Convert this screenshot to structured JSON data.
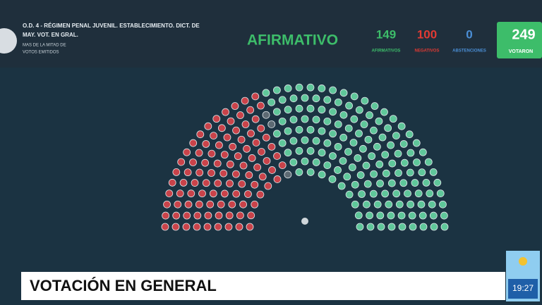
{
  "header": {
    "title_lines": [
      "O.D. 4 - RÉGIMEN PENAL JUVENIL. ESTABLECIMIENTO. DICT. DE",
      "MAY. VOT. EN GRAL."
    ],
    "rule_lines": [
      "MAS DE LA MITAD DE",
      "VOTOS EMITIDOS"
    ],
    "result": "AFIRMATIVO",
    "counts": [
      {
        "value": 149,
        "label": "AFIRMATIVOS"
      },
      {
        "value": 100,
        "label": "NEGATIVOS"
      },
      {
        "value": 0,
        "label": "ABSTENCIONES"
      }
    ],
    "total": {
      "value": 249,
      "label": "VOTARON"
    }
  },
  "lower_third": {
    "title": "VOTACIÓN EN GENERAL",
    "time": "19:27"
  }
}
